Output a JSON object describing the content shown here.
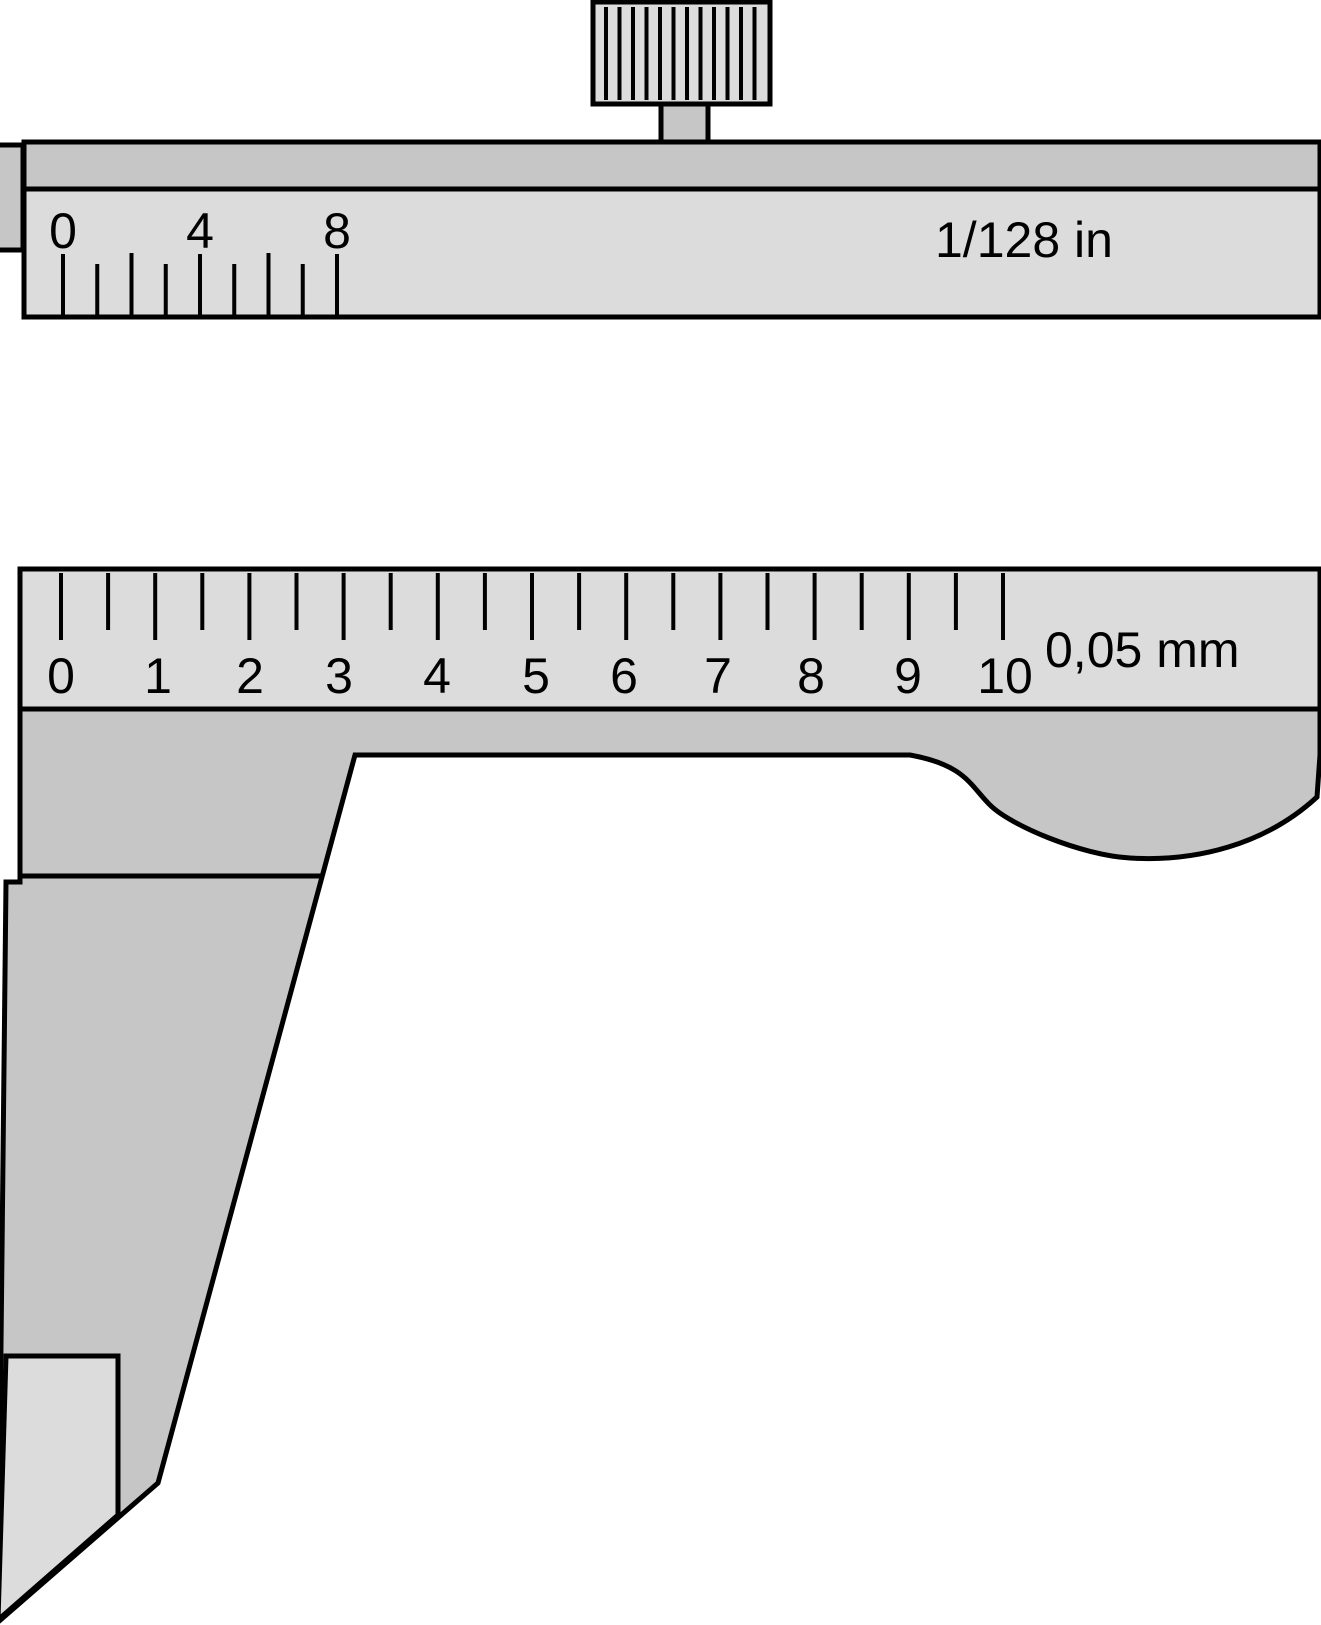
{
  "inch_vernier": {
    "labels": [
      "0",
      "4",
      "8"
    ],
    "resolution": "1/128 in"
  },
  "metric_vernier": {
    "labels": [
      "0",
      "1",
      "2",
      "3",
      "4",
      "5",
      "6",
      "7",
      "8",
      "9",
      "10"
    ],
    "resolution": "0,05 mm"
  },
  "colors": {
    "scale_face": "#dcdcdc",
    "body": "#c6c6c6",
    "outline": "#000000"
  },
  "icons": [
    "thumb-screw-icon"
  ]
}
